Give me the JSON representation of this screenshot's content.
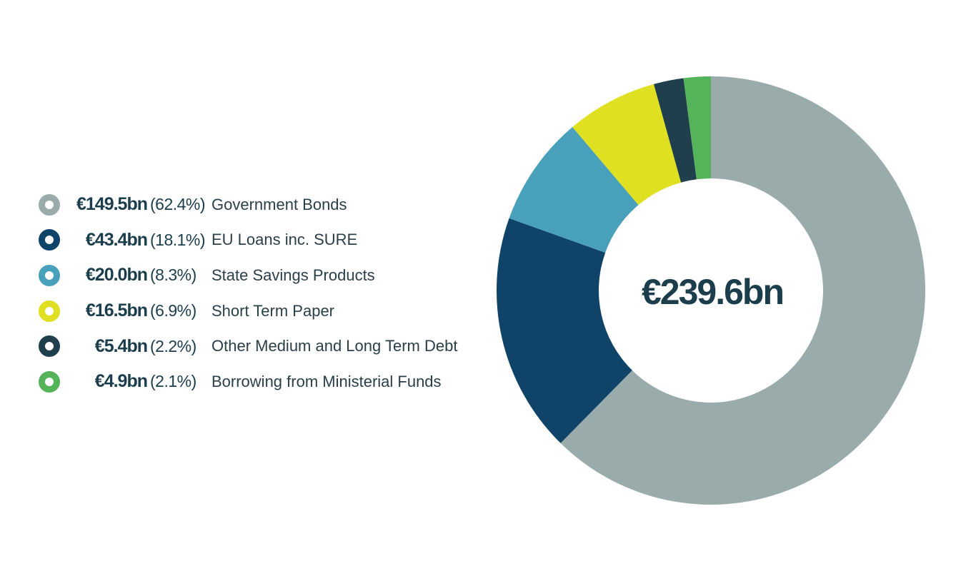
{
  "chart_data": {
    "type": "pie",
    "donut": true,
    "center_label": "€239.6bn",
    "legend_position": "left",
    "slices": [
      {
        "label": "Government Bonds",
        "value_label": "€149.5bn",
        "pct_label": "(62.4%)",
        "value": 149.5,
        "color": "#9aabab"
      },
      {
        "label": "EU Loans inc. SURE",
        "value_label": "€43.4bn",
        "pct_label": "(18.1%)",
        "value": 43.4,
        "color": "#0f4468"
      },
      {
        "label": "State Savings Products",
        "value_label": "€20.0bn",
        "pct_label": "(8.3%)",
        "value": 20.0,
        "color": "#49a0bb"
      },
      {
        "label": "Short Term Paper",
        "value_label": "€16.5bn",
        "pct_label": "(6.9%)",
        "value": 16.5,
        "color": "#dfe021"
      },
      {
        "label": "Other Medium and Long Term Debt",
        "value_label": "€5.4bn",
        "pct_label": "(2.2%)",
        "value": 5.4,
        "color": "#1f3f4c"
      },
      {
        "label": "Borrowing from Ministerial Funds",
        "value_label": "€4.9bn",
        "pct_label": "(2.1%)",
        "value": 4.9,
        "color": "#55b35a"
      }
    ]
  }
}
